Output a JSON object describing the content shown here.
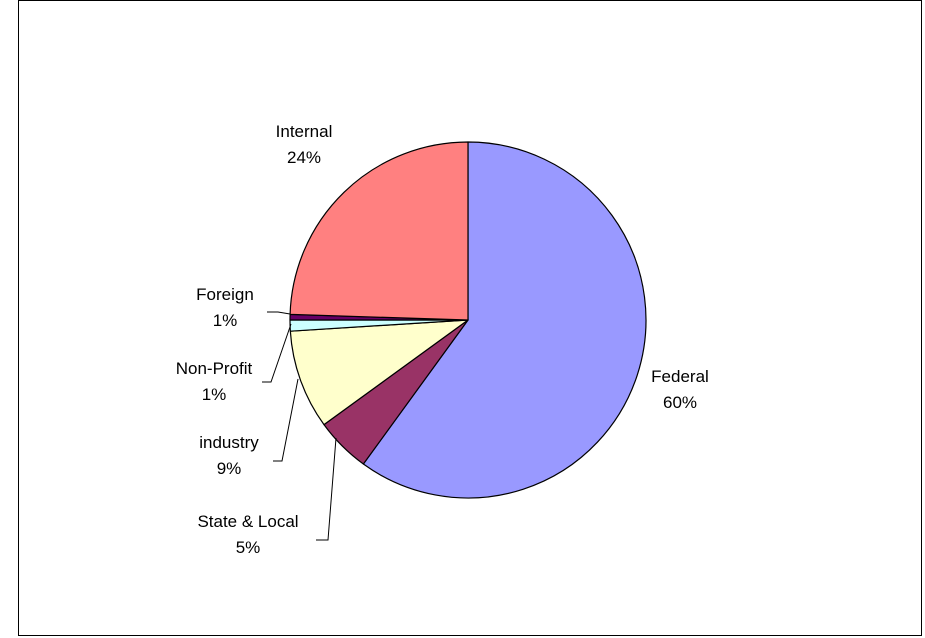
{
  "chart_data": {
    "type": "pie",
    "title": "",
    "start_angle_deg": 0,
    "direction": "clockwise",
    "slices": [
      {
        "label": "Federal",
        "value": 60,
        "percent_label": "60%",
        "color": "#9999ff"
      },
      {
        "label": "State & Local",
        "value": 5,
        "percent_label": "5%",
        "color": "#993366"
      },
      {
        "label": "industry",
        "value": 9,
        "percent_label": "9%",
        "color": "#ffffcc"
      },
      {
        "label": "Non-Profit",
        "value": 1,
        "percent_label": "1%",
        "color": "#ccffff"
      },
      {
        "label": "Foreign",
        "value": 0.5,
        "percent_label": "1%",
        "color": "#660066"
      },
      {
        "label": "Internal",
        "value": 24.5,
        "percent_label": "24%",
        "color": "#ff8080"
      }
    ]
  }
}
